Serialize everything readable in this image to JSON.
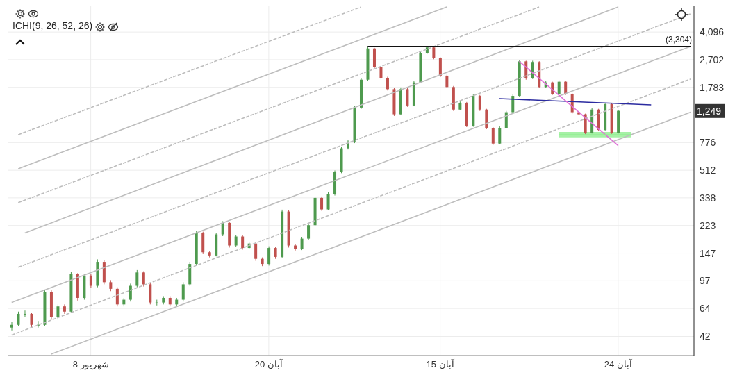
{
  "chart_data": {
    "type": "candlestick",
    "title": "ICHI(9, 26, 52, 26)",
    "categories": [
      null,
      null,
      null,
      null,
      null,
      null,
      null,
      null,
      null,
      null,
      null,
      null,
      "8 شهریور",
      null,
      null,
      null,
      null,
      null,
      null,
      null,
      null,
      null,
      null,
      null,
      null,
      null,
      null,
      null,
      null,
      null,
      null,
      null,
      null,
      null,
      null,
      null,
      null,
      null,
      null,
      "20 آبان",
      null,
      null,
      null,
      null,
      null,
      null,
      null,
      null,
      null,
      null,
      null,
      null,
      null,
      null,
      null,
      null,
      null,
      null,
      null,
      null,
      null,
      null,
      null,
      null,
      null,
      "15 آبان",
      null,
      null,
      null,
      null,
      null,
      null,
      null,
      null,
      null,
      null,
      null,
      null,
      null,
      null,
      null,
      null,
      null,
      null,
      null,
      null,
      null,
      null,
      null,
      null,
      null,
      null,
      "24 آبان",
      null,
      null,
      null,
      null,
      null,
      null,
      null,
      null,
      null,
      null,
      null
    ],
    "ohlc": [
      [
        48,
        52,
        46,
        50
      ],
      [
        50,
        61,
        49,
        59
      ],
      [
        59,
        62,
        56,
        59
      ],
      [
        59,
        60,
        48,
        50
      ],
      [
        50,
        53,
        48,
        50
      ],
      [
        50,
        85,
        49,
        82
      ],
      [
        82,
        84,
        54,
        56
      ],
      [
        56,
        68,
        54,
        66
      ],
      [
        66,
        68,
        59,
        61
      ],
      [
        61,
        111,
        60,
        107
      ],
      [
        107,
        109,
        72,
        75
      ],
      [
        75,
        108,
        73,
        105
      ],
      [
        105,
        108,
        87,
        90
      ],
      [
        90,
        134,
        88,
        129
      ],
      [
        129,
        132,
        92,
        95
      ],
      [
        95,
        98,
        83,
        86
      ],
      [
        86,
        88,
        66,
        68
      ],
      [
        68,
        75,
        66,
        73
      ],
      [
        73,
        93,
        71,
        90
      ],
      [
        90,
        114,
        88,
        110
      ],
      [
        110,
        112,
        89,
        92
      ],
      [
        92,
        94,
        68,
        70
      ],
      [
        70,
        73,
        67,
        70
      ],
      [
        70,
        77,
        68,
        75
      ],
      [
        75,
        77,
        66,
        68
      ],
      [
        68,
        75,
        66,
        73
      ],
      [
        73,
        95,
        71,
        92
      ],
      [
        92,
        129,
        90,
        125
      ],
      [
        125,
        205,
        122,
        199
      ],
      [
        199,
        203,
        145,
        149
      ],
      [
        149,
        152,
        138,
        142
      ],
      [
        142,
        200,
        140,
        195
      ],
      [
        195,
        238,
        190,
        232
      ],
      [
        232,
        236,
        160,
        165
      ],
      [
        165,
        194,
        162,
        189
      ],
      [
        189,
        192,
        155,
        159
      ],
      [
        159,
        175,
        156,
        170
      ],
      [
        170,
        173,
        131,
        135
      ],
      [
        135,
        138,
        121,
        125
      ],
      [
        125,
        163,
        122,
        159
      ],
      [
        159,
        162,
        135,
        139
      ],
      [
        139,
        283,
        137,
        275
      ],
      [
        275,
        280,
        160,
        165
      ],
      [
        165,
        168,
        153,
        157
      ],
      [
        157,
        188,
        154,
        183
      ],
      [
        183,
        230,
        180,
        224
      ],
      [
        224,
        345,
        220,
        338
      ],
      [
        338,
        345,
        278,
        284
      ],
      [
        284,
        368,
        280,
        359
      ],
      [
        359,
        510,
        350,
        498
      ],
      [
        498,
        730,
        490,
        712
      ],
      [
        712,
        810,
        700,
        789
      ],
      [
        789,
        1350,
        770,
        1315
      ],
      [
        1315,
        2050,
        1290,
        2000
      ],
      [
        2000,
        3290,
        1960,
        3200
      ],
      [
        3200,
        3230,
        2380,
        2428
      ],
      [
        2428,
        2480,
        2000,
        2041
      ],
      [
        2041,
        2090,
        1700,
        1734
      ],
      [
        1734,
        1770,
        1160,
        1188
      ],
      [
        1188,
        1780,
        1170,
        1734
      ],
      [
        1734,
        1760,
        1330,
        1356
      ],
      [
        1356,
        1960,
        1340,
        1919
      ],
      [
        1919,
        3040,
        1900,
        2978
      ],
      [
        2978,
        3304,
        2950,
        3250
      ],
      [
        3250,
        3280,
        2720,
        2773
      ],
      [
        2773,
        2800,
        2080,
        2125
      ],
      [
        2125,
        2160,
        1760,
        1790
      ],
      [
        1790,
        1820,
        1250,
        1276
      ],
      [
        1276,
        1440,
        1260,
        1413
      ],
      [
        1413,
        1430,
        980,
        998
      ],
      [
        998,
        1600,
        985,
        1567
      ],
      [
        1567,
        1590,
        1250,
        1276
      ],
      [
        1276,
        1290,
        950,
        969
      ],
      [
        969,
        980,
        750,
        765
      ],
      [
        765,
        990,
        755,
        969
      ],
      [
        969,
        1250,
        960,
        1226
      ],
      [
        1226,
        1600,
        1210,
        1567
      ],
      [
        1567,
        2690,
        1550,
        2634
      ],
      [
        2634,
        2660,
        2000,
        2041
      ],
      [
        2041,
        2660,
        2020,
        2610
      ],
      [
        2610,
        2640,
        1760,
        1790
      ],
      [
        1790,
        1960,
        1770,
        1919
      ],
      [
        1919,
        1940,
        1590,
        1614
      ],
      [
        1614,
        1980,
        1600,
        1940
      ],
      [
        1940,
        1960,
        1590,
        1614
      ],
      [
        1614,
        1630,
        1200,
        1226
      ],
      [
        1226,
        1240,
        1170,
        1188
      ],
      [
        1188,
        1200,
        880,
        901
      ],
      [
        901,
        1300,
        890,
        1276
      ],
      [
        1276,
        1290,
        920,
        939
      ],
      [
        939,
        1410,
        930,
        1384
      ],
      [
        1384,
        1400,
        885,
        901
      ],
      [
        901,
        1270,
        890,
        1252
      ],
      null,
      null,
      null,
      null,
      null,
      null,
      null,
      null,
      null,
      null,
      null
    ],
    "colors": [
      "#4e9a4e",
      "#4e9a4e",
      "#4e9a4e",
      "#c0504d",
      "#4e9a4e",
      "#4e9a4e",
      "#c0504d",
      "#4e9a4e",
      "#c0504d",
      "#4e9a4e",
      "#c0504d",
      "#4e9a4e",
      "#c0504d",
      "#4e9a4e",
      "#c0504d",
      "#c0504d",
      "#c0504d",
      "#4e9a4e",
      "#4e9a4e",
      "#4e9a4e",
      "#c0504d",
      "#c0504d",
      "#4e9a4e",
      "#4e9a4e",
      "#c0504d",
      "#4e9a4e",
      "#4e9a4e",
      "#4e9a4e",
      "#4e9a4e",
      "#c0504d",
      "#c0504d",
      "#4e9a4e",
      "#4e9a4e",
      "#c0504d",
      "#4e9a4e",
      "#c0504d",
      "#4e9a4e",
      "#c0504d",
      "#c0504d",
      "#4e9a4e",
      "#c0504d",
      "#4e9a4e",
      "#c0504d",
      "#c0504d",
      "#4e9a4e",
      "#4e9a4e",
      "#4e9a4e",
      "#c0504d",
      "#4e9a4e",
      "#4e9a4e",
      "#4e9a4e",
      "#4e9a4e",
      "#4e9a4e",
      "#4e9a4e",
      "#4e9a4e",
      "#c0504d",
      "#c0504d",
      "#c0504d",
      "#c0504d",
      "#4e9a4e",
      "#c0504d",
      "#4e9a4e",
      "#4e9a4e",
      "#4e9a4e",
      "#c0504d",
      "#c0504d",
      "#c0504d",
      "#c0504d",
      "#4e9a4e",
      "#c0504d",
      "#4e9a4e",
      "#c0504d",
      "#c0504d",
      "#c0504d",
      "#4e9a4e",
      "#4e9a4e",
      "#4e9a4e",
      "#4e9a4e",
      "#c0504d",
      "#4e9a4e",
      "#c0504d",
      "#4e9a4e",
      "#c0504d",
      "#4e9a4e",
      "#c0504d",
      "#c0504d",
      "#c0504d",
      "#c0504d",
      "#4e9a4e",
      "#c0504d",
      "#4e9a4e",
      "#c0504d",
      "#4e9a4e",
      null,
      null,
      null,
      null,
      null,
      null,
      null,
      null,
      null,
      null,
      null
    ],
    "series": [
      {
        "type": "line",
        "color": "#bdbdbd",
        "line_style": "solid",
        "values": [
          null,
          524,
          null,
          null,
          null,
          null,
          null,
          null,
          null,
          null,
          null,
          null,
          null,
          null,
          null,
          null,
          null,
          null,
          null,
          null,
          null,
          null,
          null,
          null,
          null,
          null,
          null,
          null,
          null,
          null,
          null,
          null,
          null,
          null,
          null,
          null,
          null,
          null,
          null,
          null,
          null,
          null,
          null,
          null,
          null,
          null,
          null,
          null,
          null,
          null,
          null,
          null,
          null,
          null,
          null,
          null,
          null,
          null,
          null,
          null,
          null,
          null,
          null,
          null,
          null,
          null,
          5970,
          null,
          null,
          null,
          null,
          null,
          null,
          null,
          null,
          null,
          null,
          null,
          null,
          null,
          null,
          null,
          null,
          null,
          null,
          null,
          null,
          null,
          null,
          null,
          null,
          null,
          null,
          null,
          null,
          null,
          null,
          null,
          null,
          null,
          null,
          null,
          null,
          null
        ]
      },
      {
        "type": "line",
        "color": "#bdbdbd",
        "line_style": "solid",
        "values": [
          null,
          null,
          199,
          null,
          null,
          null,
          null,
          null,
          null,
          null,
          null,
          null,
          null,
          null,
          null,
          null,
          null,
          null,
          null,
          null,
          null,
          null,
          null,
          null,
          null,
          null,
          null,
          null,
          null,
          null,
          null,
          null,
          null,
          null,
          null,
          null,
          null,
          null,
          null,
          null,
          null,
          null,
          null,
          null,
          null,
          null,
          null,
          null,
          null,
          null,
          null,
          null,
          null,
          null,
          null,
          null,
          null,
          null,
          null,
          null,
          null,
          null,
          null,
          null,
          null,
          null,
          null,
          null,
          null,
          null,
          null,
          null,
          null,
          null,
          null,
          null,
          null,
          null,
          null,
          null,
          null,
          null,
          null,
          null,
          null,
          null,
          null,
          null,
          null,
          null,
          null,
          null,
          5970,
          null,
          null,
          null,
          null,
          null,
          null,
          null,
          null,
          null,
          null,
          null
        ]
      },
      {
        "type": "line",
        "color": "#bdbdbd",
        "line_style": "solid",
        "values": [
          70,
          null,
          null,
          null,
          null,
          null,
          null,
          null,
          null,
          null,
          null,
          null,
          null,
          null,
          null,
          null,
          null,
          null,
          null,
          null,
          null,
          null,
          null,
          null,
          null,
          null,
          null,
          null,
          null,
          null,
          null,
          null,
          null,
          null,
          null,
          null,
          null,
          null,
          null,
          null,
          null,
          null,
          null,
          null,
          null,
          null,
          null,
          null,
          null,
          null,
          null,
          null,
          null,
          null,
          null,
          null,
          null,
          null,
          null,
          null,
          null,
          null,
          null,
          null,
          null,
          null,
          null,
          null,
          null,
          null,
          null,
          null,
          null,
          null,
          null,
          null,
          null,
          null,
          null,
          null,
          null,
          null,
          null,
          null,
          null,
          null,
          null,
          null,
          null,
          null,
          null,
          null,
          null,
          null,
          null,
          null,
          null,
          null,
          null,
          null,
          null,
          null,
          null,
          3300
        ]
      },
      {
        "type": "line",
        "color": "#bdbdbd",
        "line_style": "solid",
        "values": [
          null,
          null,
          null,
          null,
          null,
          null,
          32.2,
          null,
          null,
          null,
          null,
          null,
          null,
          null,
          null,
          null,
          null,
          null,
          null,
          null,
          null,
          null,
          null,
          null,
          null,
          null,
          null,
          null,
          null,
          null,
          null,
          null,
          null,
          null,
          null,
          null,
          null,
          null,
          null,
          null,
          null,
          null,
          null,
          null,
          null,
          null,
          null,
          null,
          null,
          null,
          null,
          null,
          null,
          null,
          null,
          null,
          null,
          null,
          null,
          null,
          null,
          null,
          null,
          null,
          null,
          null,
          null,
          null,
          null,
          null,
          null,
          null,
          null,
          null,
          null,
          null,
          null,
          null,
          null,
          null,
          null,
          null,
          null,
          null,
          null,
          null,
          null,
          null,
          null,
          null,
          null,
          null,
          null,
          null,
          null,
          null,
          null,
          null,
          null,
          null,
          null,
          null,
          null,
          1226
        ]
      },
      {
        "type": "line",
        "color": "#bdbdbd",
        "line_style": "dashed",
        "values": [
          null,
          874,
          null,
          null,
          null,
          null,
          null,
          null,
          null,
          null,
          null,
          null,
          null,
          null,
          null,
          null,
          null,
          null,
          null,
          null,
          null,
          null,
          null,
          null,
          null,
          null,
          null,
          null,
          null,
          null,
          null,
          null,
          null,
          null,
          null,
          null,
          null,
          null,
          null,
          null,
          null,
          null,
          null,
          null,
          null,
          null,
          null,
          null,
          null,
          null,
          null,
          null,
          null,
          5970,
          null,
          null,
          null,
          null,
          null,
          null,
          null,
          null,
          null,
          null,
          null,
          null,
          null,
          null,
          null,
          null,
          null,
          null,
          null,
          null,
          null,
          null,
          null,
          null,
          null,
          null,
          null,
          null,
          null,
          null,
          null,
          null,
          null,
          null,
          null,
          null,
          null,
          null,
          null,
          null,
          null,
          null,
          null,
          null,
          null,
          null,
          null,
          null,
          null,
          null
        ]
      },
      {
        "type": "line",
        "color": "#bdbdbd",
        "line_style": "dashed",
        "values": [
          null,
          314.5,
          null,
          null,
          null,
          null,
          null,
          null,
          null,
          null,
          null,
          null,
          null,
          null,
          null,
          null,
          null,
          null,
          null,
          null,
          null,
          null,
          null,
          null,
          null,
          null,
          null,
          null,
          null,
          null,
          null,
          null,
          null,
          null,
          null,
          null,
          null,
          null,
          null,
          null,
          null,
          null,
          null,
          null,
          null,
          null,
          null,
          null,
          null,
          null,
          null,
          null,
          null,
          null,
          null,
          null,
          null,
          null,
          null,
          null,
          null,
          null,
          null,
          null,
          null,
          null,
          null,
          null,
          null,
          null,
          null,
          null,
          null,
          null,
          null,
          null,
          null,
          null,
          null,
          null,
          5970,
          null,
          null,
          null,
          null,
          null,
          null,
          null,
          null,
          null,
          null,
          null,
          null,
          null,
          null,
          null,
          null,
          null,
          null,
          null,
          null,
          null,
          null,
          null
        ]
      },
      {
        "type": "line",
        "color": "#bdbdbd",
        "line_style": "dashed",
        "values": [
          null,
          119,
          null,
          null,
          null,
          null,
          null,
          null,
          null,
          null,
          null,
          null,
          null,
          null,
          null,
          null,
          null,
          null,
          null,
          null,
          null,
          null,
          null,
          null,
          null,
          null,
          null,
          null,
          null,
          null,
          null,
          null,
          null,
          null,
          null,
          null,
          null,
          null,
          null,
          null,
          null,
          null,
          null,
          null,
          null,
          null,
          null,
          null,
          null,
          null,
          null,
          null,
          null,
          null,
          null,
          null,
          null,
          null,
          null,
          null,
          null,
          null,
          null,
          null,
          null,
          null,
          null,
          null,
          null,
          null,
          null,
          null,
          null,
          null,
          null,
          null,
          null,
          null,
          null,
          null,
          null,
          null,
          null,
          null,
          null,
          null,
          null,
          null,
          null,
          null,
          null,
          null,
          null,
          null,
          null,
          null,
          null,
          null,
          null,
          null,
          null,
          null,
          null,
          5390
        ]
      },
      {
        "type": "line",
        "color": "#bdbdbd",
        "line_style": "dashed",
        "values": [
          42.9,
          null,
          null,
          null,
          null,
          null,
          null,
          null,
          null,
          null,
          null,
          null,
          null,
          null,
          null,
          null,
          null,
          null,
          null,
          null,
          null,
          null,
          null,
          null,
          null,
          null,
          null,
          null,
          null,
          null,
          null,
          null,
          null,
          null,
          null,
          null,
          null,
          null,
          null,
          null,
          null,
          null,
          null,
          null,
          null,
          null,
          null,
          null,
          null,
          null,
          null,
          null,
          null,
          null,
          null,
          null,
          null,
          null,
          null,
          null,
          null,
          null,
          null,
          null,
          null,
          null,
          null,
          null,
          null,
          null,
          null,
          null,
          null,
          null,
          null,
          null,
          null,
          null,
          null,
          null,
          null,
          null,
          null,
          null,
          null,
          null,
          null,
          null,
          null,
          null,
          null,
          null,
          null,
          null,
          null,
          null,
          null,
          null,
          null,
          null,
          null,
          null,
          null,
          2020
        ]
      },
      {
        "type": "line",
        "color": "#111111",
        "line_style": "solid",
        "values": [
          null,
          null,
          null,
          null,
          null,
          null,
          null,
          null,
          null,
          null,
          null,
          null,
          null,
          null,
          null,
          null,
          null,
          null,
          null,
          null,
          null,
          null,
          null,
          null,
          null,
          null,
          null,
          null,
          null,
          null,
          null,
          null,
          null,
          null,
          null,
          null,
          null,
          null,
          null,
          null,
          null,
          null,
          null,
          null,
          null,
          null,
          null,
          null,
          null,
          null,
          null,
          null,
          null,
          null,
          3304,
          null,
          null,
          null,
          null,
          null,
          null,
          null,
          null,
          null,
          null,
          null,
          null,
          null,
          null,
          null,
          null,
          null,
          null,
          null,
          null,
          null,
          null,
          null,
          null,
          null,
          null,
          null,
          null,
          null,
          null,
          null,
          null,
          null,
          null,
          null,
          null,
          null,
          null,
          null,
          null,
          null,
          null,
          null,
          null,
          null,
          null,
          null,
          null,
          3304
        ]
      },
      {
        "type": "line",
        "color": "#2b2ba0",
        "line_style": "solid",
        "values": [
          null,
          null,
          null,
          null,
          null,
          null,
          null,
          null,
          null,
          null,
          null,
          null,
          null,
          null,
          null,
          null,
          null,
          null,
          null,
          null,
          null,
          null,
          null,
          null,
          null,
          null,
          null,
          null,
          null,
          null,
          null,
          null,
          null,
          null,
          null,
          null,
          null,
          null,
          null,
          null,
          null,
          null,
          null,
          null,
          null,
          null,
          null,
          null,
          null,
          null,
          null,
          null,
          null,
          null,
          null,
          null,
          null,
          null,
          null,
          null,
          null,
          null,
          null,
          null,
          null,
          null,
          null,
          null,
          null,
          null,
          null,
          null,
          null,
          null,
          1503,
          null,
          null,
          null,
          null,
          null,
          null,
          null,
          null,
          null,
          null,
          null,
          null,
          null,
          null,
          null,
          null,
          null,
          null,
          null,
          null,
          null,
          null,
          1370,
          null,
          null,
          null,
          null,
          null,
          null
        ]
      },
      {
        "type": "line",
        "color": "#e070d8",
        "line_style": "solid",
        "values": [
          null,
          null,
          null,
          null,
          null,
          null,
          null,
          null,
          null,
          null,
          null,
          null,
          null,
          null,
          null,
          null,
          null,
          null,
          null,
          null,
          null,
          null,
          null,
          null,
          null,
          null,
          null,
          null,
          null,
          null,
          null,
          null,
          null,
          null,
          null,
          null,
          null,
          null,
          null,
          null,
          null,
          null,
          null,
          null,
          null,
          null,
          null,
          null,
          null,
          null,
          null,
          null,
          null,
          null,
          null,
          null,
          null,
          null,
          null,
          null,
          null,
          null,
          null,
          null,
          null,
          null,
          null,
          null,
          null,
          null,
          null,
          null,
          null,
          null,
          null,
          null,
          null,
          2634,
          null,
          null,
          null,
          null,
          null,
          null,
          null,
          null,
          null,
          null,
          null,
          null,
          null,
          null,
          742,
          null,
          null,
          null,
          null,
          null,
          null,
          null,
          null,
          null,
          null,
          null
        ]
      },
      {
        "type": "line",
        "color": "#90ee90",
        "line_style": "solid",
        "values": [
          null,
          null,
          null,
          null,
          null,
          null,
          null,
          null,
          null,
          null,
          null,
          null,
          null,
          null,
          null,
          null,
          null,
          null,
          null,
          null,
          null,
          null,
          null,
          null,
          null,
          null,
          null,
          null,
          null,
          null,
          null,
          null,
          null,
          null,
          null,
          null,
          null,
          null,
          null,
          null,
          null,
          null,
          null,
          null,
          null,
          null,
          null,
          null,
          null,
          null,
          null,
          null,
          null,
          null,
          null,
          null,
          null,
          null,
          null,
          null,
          null,
          null,
          null,
          null,
          null,
          null,
          null,
          null,
          null,
          null,
          null,
          null,
          null,
          null,
          null,
          null,
          null,
          null,
          null,
          null,
          null,
          null,
          null,
          875,
          null,
          null,
          null,
          null,
          null,
          null,
          null,
          null,
          null,
          null,
          875,
          null,
          null,
          null,
          null,
          null,
          null,
          null,
          null,
          null
        ],
        "upper": [
          null,
          null,
          null,
          null,
          null,
          null,
          null,
          null,
          null,
          null,
          null,
          null,
          null,
          null,
          null,
          null,
          null,
          null,
          null,
          null,
          null,
          null,
          null,
          null,
          null,
          null,
          null,
          null,
          null,
          null,
          null,
          null,
          null,
          null,
          null,
          null,
          null,
          null,
          null,
          null,
          null,
          null,
          null,
          null,
          null,
          null,
          null,
          null,
          null,
          null,
          null,
          null,
          null,
          null,
          null,
          null,
          null,
          null,
          null,
          null,
          null,
          null,
          null,
          null,
          null,
          null,
          null,
          null,
          null,
          null,
          null,
          null,
          null,
          null,
          null,
          null,
          null,
          null,
          null,
          null,
          null,
          null,
          null,
          911,
          null,
          null,
          null,
          null,
          null,
          null,
          null,
          null,
          null,
          null,
          911,
          null,
          null,
          null,
          null,
          null,
          null,
          null,
          null,
          null
        ],
        "lower": [
          null,
          null,
          null,
          null,
          null,
          null,
          null,
          null,
          null,
          null,
          null,
          null,
          null,
          null,
          null,
          null,
          null,
          null,
          null,
          null,
          null,
          null,
          null,
          null,
          null,
          null,
          null,
          null,
          null,
          null,
          null,
          null,
          null,
          null,
          null,
          null,
          null,
          null,
          null,
          null,
          null,
          null,
          null,
          null,
          null,
          null,
          null,
          null,
          null,
          null,
          null,
          null,
          null,
          null,
          null,
          null,
          null,
          null,
          null,
          null,
          null,
          null,
          null,
          null,
          null,
          null,
          null,
          null,
          null,
          null,
          null,
          null,
          null,
          null,
          null,
          null,
          null,
          null,
          null,
          null,
          null,
          null,
          null,
          839,
          null,
          null,
          null,
          null,
          null,
          null,
          null,
          null,
          null,
          null,
          839,
          null,
          null,
          null,
          null,
          null,
          null,
          null,
          null,
          null
        ]
      }
    ],
    "ylim": [
      31.5,
      6100
    ],
    "log": true,
    "yticks": [
      42,
      64,
      97,
      147,
      223,
      338,
      512,
      776,
      {
        "value": 1783,
        "label": "1,783"
      },
      {
        "value": 2702,
        "label": "2,702"
      },
      {
        "value": 4096,
        "label": "4,096"
      }
    ],
    "annotations": [
      {
        "text": "(3,304)",
        "y": 3304
      },
      {
        "text": "1,249",
        "y": 1249
      }
    ],
    "grid": true
  }
}
